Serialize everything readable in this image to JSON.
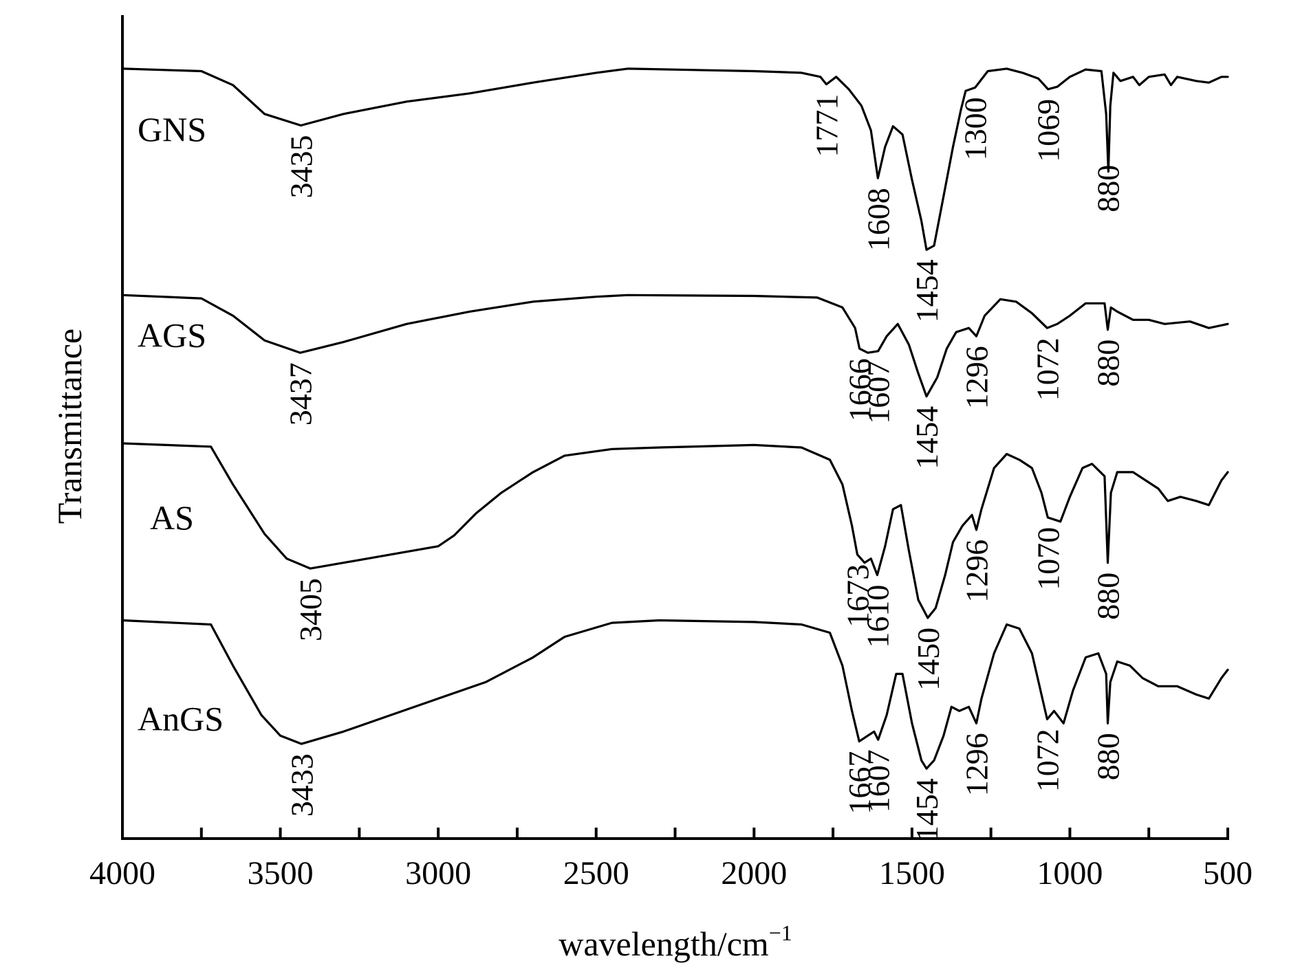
{
  "chart_data": {
    "type": "line",
    "xlabel": "wavelength/cm",
    "xlabel_superscript": "−1",
    "ylabel": "Transmittance",
    "xlim": [
      4000,
      500
    ],
    "x_reversed": true,
    "x_ticks": [
      4000,
      3500,
      3000,
      2500,
      2000,
      1500,
      1000,
      500
    ],
    "x_tick_labels": [
      "4000",
      "3500",
      "3000",
      "2500",
      "2000",
      "1500",
      "1000",
      "500"
    ],
    "ylim": [
      0,
      100
    ],
    "grid": false,
    "legend": "none",
    "series": [
      {
        "name": "GNS",
        "baseline": 93.5,
        "end_value": 92.5,
        "points": [
          [
            4000,
            93.5
          ],
          [
            3750,
            93.2
          ],
          [
            3650,
            91.5
          ],
          [
            3550,
            88.0
          ],
          [
            3435,
            86.6
          ],
          [
            3300,
            88.0
          ],
          [
            3100,
            89.5
          ],
          [
            2900,
            90.5
          ],
          [
            2700,
            91.8
          ],
          [
            2500,
            93.0
          ],
          [
            2400,
            93.5
          ],
          [
            2000,
            93.2
          ],
          [
            1850,
            93.0
          ],
          [
            1790,
            92.5
          ],
          [
            1771,
            91.6
          ],
          [
            1740,
            92.5
          ],
          [
            1700,
            91.0
          ],
          [
            1660,
            89.0
          ],
          [
            1630,
            86.0
          ],
          [
            1608,
            80.2
          ],
          [
            1585,
            84.0
          ],
          [
            1560,
            86.5
          ],
          [
            1530,
            85.5
          ],
          [
            1500,
            80.0
          ],
          [
            1470,
            75.0
          ],
          [
            1454,
            71.5
          ],
          [
            1430,
            72.0
          ],
          [
            1400,
            78.0
          ],
          [
            1370,
            84.0
          ],
          [
            1345,
            88.5
          ],
          [
            1330,
            90.8
          ],
          [
            1300,
            91.2
          ],
          [
            1260,
            93.2
          ],
          [
            1200,
            93.5
          ],
          [
            1150,
            93.0
          ],
          [
            1100,
            92.3
          ],
          [
            1069,
            91.0
          ],
          [
            1040,
            91.3
          ],
          [
            1000,
            92.5
          ],
          [
            950,
            93.4
          ],
          [
            900,
            93.2
          ],
          [
            885,
            88.0
          ],
          [
            878,
            81.0
          ],
          [
            872,
            89.0
          ],
          [
            862,
            93.0
          ],
          [
            840,
            92.0
          ],
          [
            800,
            92.5
          ],
          [
            780,
            91.5
          ],
          [
            750,
            92.5
          ],
          [
            700,
            92.8
          ],
          [
            680,
            91.5
          ],
          [
            660,
            92.5
          ],
          [
            600,
            92.0
          ],
          [
            560,
            91.8
          ],
          [
            520,
            92.5
          ],
          [
            500,
            92.5
          ]
        ],
        "peak_labels": [
          {
            "label": "3435",
            "x": 3435
          },
          {
            "label": "1771",
            "x": 1771
          },
          {
            "label": "1608",
            "x": 1608
          },
          {
            "label": "1454",
            "x": 1454
          },
          {
            "label": "1300",
            "x": 1300
          },
          {
            "label": "1069",
            "x": 1069
          },
          {
            "label": "880",
            "x": 880
          }
        ]
      },
      {
        "name": "AGS",
        "baseline": 66.0,
        "end_value": 62.5,
        "points": [
          [
            4000,
            66.0
          ],
          [
            3750,
            65.6
          ],
          [
            3650,
            63.5
          ],
          [
            3550,
            60.5
          ],
          [
            3437,
            59.0
          ],
          [
            3300,
            60.3
          ],
          [
            3100,
            62.5
          ],
          [
            2900,
            64.0
          ],
          [
            2700,
            65.2
          ],
          [
            2500,
            65.8
          ],
          [
            2400,
            66.0
          ],
          [
            2000,
            65.9
          ],
          [
            1800,
            65.7
          ],
          [
            1720,
            64.5
          ],
          [
            1680,
            62.0
          ],
          [
            1666,
            59.5
          ],
          [
            1640,
            59.0
          ],
          [
            1607,
            59.2
          ],
          [
            1580,
            61.0
          ],
          [
            1545,
            62.5
          ],
          [
            1510,
            60.0
          ],
          [
            1480,
            56.5
          ],
          [
            1454,
            53.7
          ],
          [
            1420,
            56.0
          ],
          [
            1390,
            59.5
          ],
          [
            1360,
            61.5
          ],
          [
            1320,
            62.0
          ],
          [
            1296,
            61.0
          ],
          [
            1270,
            63.5
          ],
          [
            1220,
            65.5
          ],
          [
            1170,
            65.2
          ],
          [
            1120,
            63.8
          ],
          [
            1072,
            62.0
          ],
          [
            1040,
            62.5
          ],
          [
            1000,
            63.5
          ],
          [
            950,
            65.0
          ],
          [
            890,
            65.0
          ],
          [
            880,
            61.8
          ],
          [
            870,
            64.5
          ],
          [
            850,
            64.0
          ],
          [
            800,
            63.0
          ],
          [
            750,
            63.0
          ],
          [
            700,
            62.5
          ],
          [
            620,
            62.8
          ],
          [
            560,
            62.0
          ],
          [
            500,
            62.5
          ]
        ],
        "peak_labels": [
          {
            "label": "3437",
            "x": 3437
          },
          {
            "label": "1666",
            "x": 1666
          },
          {
            "label": "1607",
            "x": 1607
          },
          {
            "label": "1454",
            "x": 1454
          },
          {
            "label": "1296",
            "x": 1296
          },
          {
            "label": "1072",
            "x": 1072
          },
          {
            "label": "880",
            "x": 880
          }
        ]
      },
      {
        "name": "AS",
        "baseline": 48.0,
        "end_value": 44.5,
        "points": [
          [
            4000,
            48.0
          ],
          [
            3720,
            47.6
          ],
          [
            3650,
            43.0
          ],
          [
            3550,
            37.0
          ],
          [
            3480,
            34.0
          ],
          [
            3405,
            32.8
          ],
          [
            3300,
            33.5
          ],
          [
            3150,
            34.5
          ],
          [
            3000,
            35.5
          ],
          [
            2950,
            36.8
          ],
          [
            2880,
            39.5
          ],
          [
            2800,
            42.0
          ],
          [
            2700,
            44.5
          ],
          [
            2600,
            46.5
          ],
          [
            2450,
            47.3
          ],
          [
            2300,
            47.5
          ],
          [
            2000,
            47.8
          ],
          [
            1850,
            47.5
          ],
          [
            1760,
            46.0
          ],
          [
            1720,
            43.0
          ],
          [
            1690,
            38.0
          ],
          [
            1673,
            34.5
          ],
          [
            1650,
            33.5
          ],
          [
            1630,
            34.0
          ],
          [
            1610,
            32.0
          ],
          [
            1585,
            35.5
          ],
          [
            1560,
            40.0
          ],
          [
            1535,
            40.5
          ],
          [
            1510,
            35.0
          ],
          [
            1480,
            29.0
          ],
          [
            1450,
            26.8
          ],
          [
            1425,
            28.0
          ],
          [
            1395,
            32.0
          ],
          [
            1370,
            36.0
          ],
          [
            1340,
            38.0
          ],
          [
            1310,
            39.3
          ],
          [
            1296,
            37.5
          ],
          [
            1280,
            40.0
          ],
          [
            1240,
            45.0
          ],
          [
            1200,
            46.7
          ],
          [
            1160,
            46.0
          ],
          [
            1120,
            45.0
          ],
          [
            1090,
            42.0
          ],
          [
            1070,
            39.0
          ],
          [
            1030,
            38.5
          ],
          [
            1000,
            41.5
          ],
          [
            960,
            45.0
          ],
          [
            930,
            45.5
          ],
          [
            890,
            44.0
          ],
          [
            880,
            33.5
          ],
          [
            870,
            42.0
          ],
          [
            850,
            44.5
          ],
          [
            800,
            44.5
          ],
          [
            760,
            43.5
          ],
          [
            720,
            42.5
          ],
          [
            690,
            41.0
          ],
          [
            650,
            41.5
          ],
          [
            600,
            41.0
          ],
          [
            560,
            40.5
          ],
          [
            520,
            43.5
          ],
          [
            500,
            44.5
          ]
        ],
        "peak_labels": [
          {
            "label": "3405",
            "x": 3405
          },
          {
            "label": "1673",
            "x": 1673
          },
          {
            "label": "1610",
            "x": 1610
          },
          {
            "label": "1450",
            "x": 1450
          },
          {
            "label": "1296",
            "x": 1296
          },
          {
            "label": "1070",
            "x": 1070
          },
          {
            "label": "880",
            "x": 880
          }
        ]
      },
      {
        "name": "AnGS",
        "baseline": 26.5,
        "end_value": 20.5,
        "points": [
          [
            4000,
            26.5
          ],
          [
            3720,
            26.0
          ],
          [
            3650,
            21.0
          ],
          [
            3560,
            15.0
          ],
          [
            3500,
            12.5
          ],
          [
            3433,
            11.5
          ],
          [
            3300,
            13.0
          ],
          [
            3150,
            15.0
          ],
          [
            3000,
            17.0
          ],
          [
            2850,
            19.0
          ],
          [
            2700,
            22.0
          ],
          [
            2600,
            24.5
          ],
          [
            2450,
            26.2
          ],
          [
            2300,
            26.5
          ],
          [
            2000,
            26.3
          ],
          [
            1850,
            26.0
          ],
          [
            1760,
            25.0
          ],
          [
            1720,
            21.0
          ],
          [
            1690,
            15.5
          ],
          [
            1667,
            11.8
          ],
          [
            1640,
            12.5
          ],
          [
            1620,
            13.0
          ],
          [
            1607,
            12.0
          ],
          [
            1580,
            15.0
          ],
          [
            1550,
            20.0
          ],
          [
            1530,
            20.0
          ],
          [
            1500,
            14.0
          ],
          [
            1470,
            9.5
          ],
          [
            1454,
            8.5
          ],
          [
            1430,
            9.5
          ],
          [
            1400,
            12.5
          ],
          [
            1375,
            16.0
          ],
          [
            1350,
            15.5
          ],
          [
            1320,
            16.0
          ],
          [
            1296,
            14.0
          ],
          [
            1280,
            17.0
          ],
          [
            1240,
            22.5
          ],
          [
            1200,
            26.0
          ],
          [
            1160,
            25.5
          ],
          [
            1120,
            22.5
          ],
          [
            1090,
            17.5
          ],
          [
            1072,
            14.5
          ],
          [
            1050,
            15.5
          ],
          [
            1020,
            14.0
          ],
          [
            990,
            18.0
          ],
          [
            950,
            22.0
          ],
          [
            910,
            22.5
          ],
          [
            885,
            20.0
          ],
          [
            880,
            14.0
          ],
          [
            872,
            19.0
          ],
          [
            850,
            21.5
          ],
          [
            810,
            21.0
          ],
          [
            770,
            19.5
          ],
          [
            720,
            18.5
          ],
          [
            660,
            18.5
          ],
          [
            600,
            17.5
          ],
          [
            560,
            17.0
          ],
          [
            520,
            19.5
          ],
          [
            500,
            20.5
          ]
        ],
        "peak_labels": [
          {
            "label": "3433",
            "x": 3433
          },
          {
            "label": "1667",
            "x": 1667
          },
          {
            "label": "1607",
            "x": 1607
          },
          {
            "label": "1454",
            "x": 1454
          },
          {
            "label": "1296",
            "x": 1296
          },
          {
            "label": "1072",
            "x": 1072
          },
          {
            "label": "880",
            "x": 880
          }
        ]
      }
    ]
  }
}
